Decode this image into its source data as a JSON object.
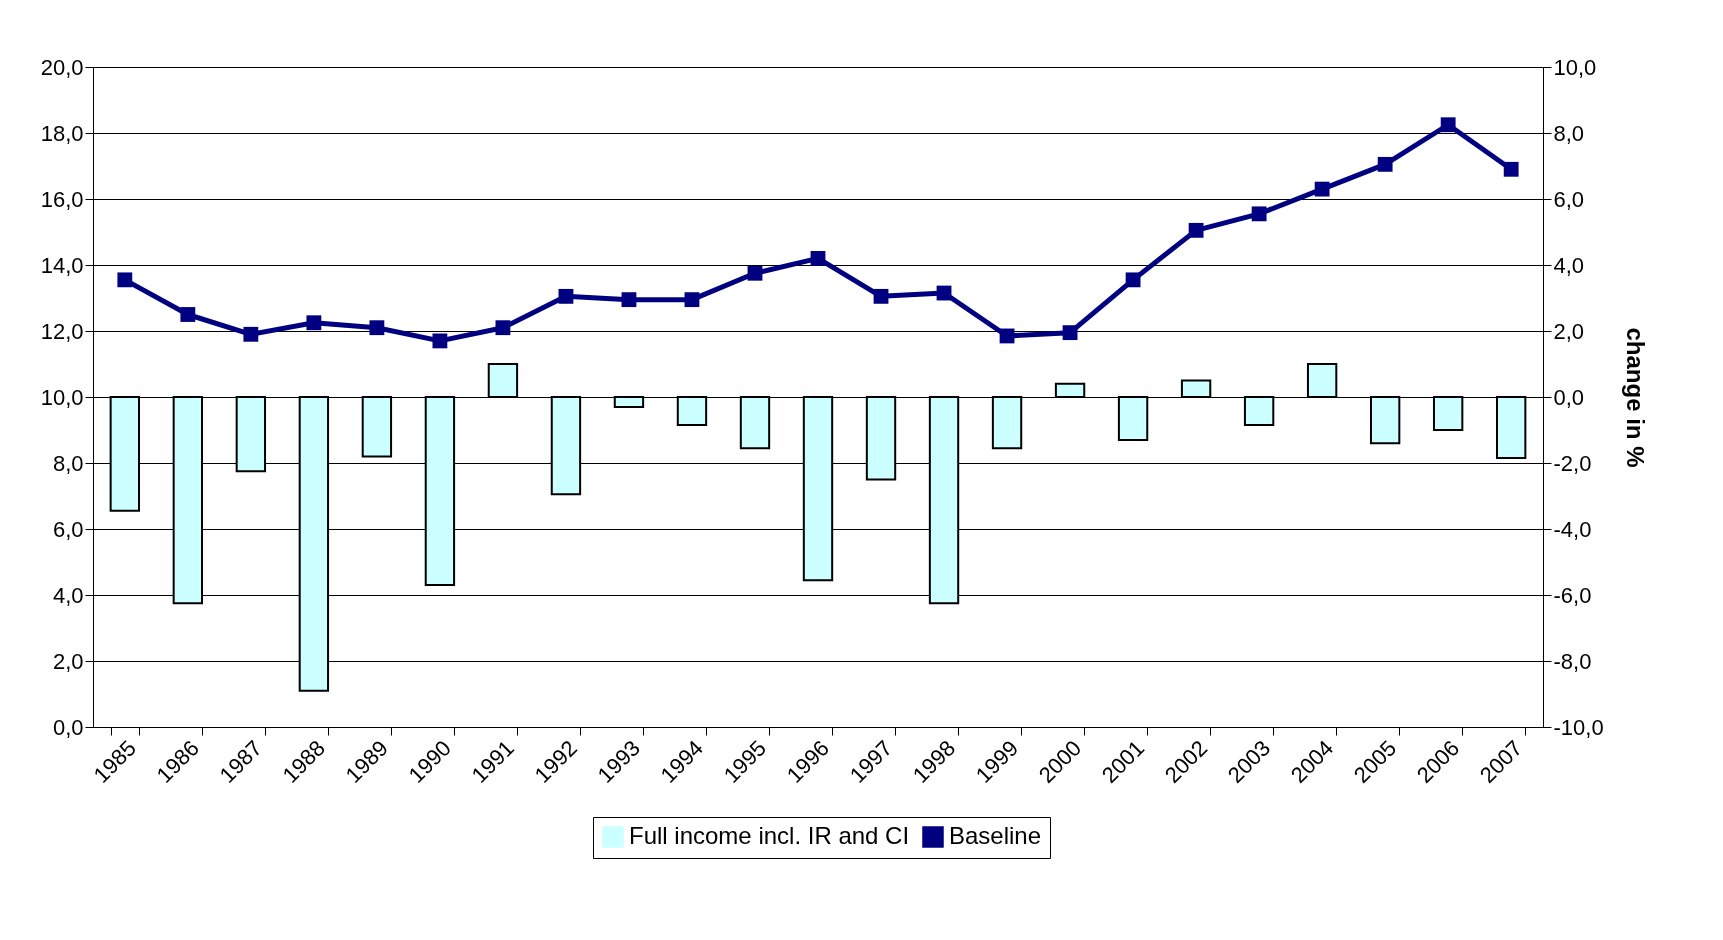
{
  "chart_data": {
    "type": "bar",
    "y2label": "change in %",
    "categories": [
      "1985",
      "1986",
      "1987",
      "1988",
      "1989",
      "1990",
      "1991",
      "1992",
      "1993",
      "1994",
      "1995",
      "1996",
      "1997",
      "1998",
      "1999",
      "2000",
      "2001",
      "2002",
      "2003",
      "2004",
      "2005",
      "2006",
      "2007"
    ],
    "series": [
      {
        "name": "Full income incl. IR and CI",
        "axis": "y2",
        "color": "#ccffff",
        "values": [
          -3.45,
          -6.25,
          -2.25,
          -8.9,
          -1.8,
          -5.7,
          1.0,
          -2.95,
          -0.3,
          -0.85,
          -1.55,
          -5.55,
          -2.5,
          -6.25,
          -1.55,
          0.4,
          -1.3,
          0.5,
          -0.85,
          1.0,
          -1.4,
          -1.0,
          -1.85
        ]
      },
      {
        "name": "Baseline",
        "type": "line",
        "color": "#000080",
        "values": [
          13.55,
          12.5,
          11.9,
          12.25,
          12.1,
          11.7,
          12.1,
          13.05,
          12.95,
          12.95,
          13.75,
          14.2,
          13.05,
          13.15,
          11.85,
          11.95,
          13.55,
          15.05,
          15.55,
          16.3,
          17.05,
          18.25,
          16.9
        ]
      }
    ],
    "ylim": [
      0,
      20
    ],
    "yticks": [
      {
        "value": 0,
        "label": "0,0"
      },
      {
        "value": 2,
        "label": "2,0"
      },
      {
        "value": 4,
        "label": "4,0"
      },
      {
        "value": 6,
        "label": "6,0"
      },
      {
        "value": 8,
        "label": "8,0"
      },
      {
        "value": 10,
        "label": "10,0"
      },
      {
        "value": 12,
        "label": "12,0"
      },
      {
        "value": 14,
        "label": "14,0"
      },
      {
        "value": 16,
        "label": "16,0"
      },
      {
        "value": 18,
        "label": "18,0"
      },
      {
        "value": 20,
        "label": "20,0"
      }
    ],
    "y2lim": [
      -10,
      10
    ],
    "y2ticks": [
      {
        "value": -10,
        "label": "-10,0"
      },
      {
        "value": -8,
        "label": "-8,0"
      },
      {
        "value": -6,
        "label": "-6,0"
      },
      {
        "value": -4,
        "label": "-4,0"
      },
      {
        "value": -2,
        "label": "-2,0"
      },
      {
        "value": 0,
        "label": "0,0"
      },
      {
        "value": 2,
        "label": "2,0"
      },
      {
        "value": 4,
        "label": "4,0"
      },
      {
        "value": 6,
        "label": "6,0"
      },
      {
        "value": 8,
        "label": "8,0"
      },
      {
        "value": 10,
        "label": "10,0"
      }
    ],
    "grid": "y",
    "legend": "bottom",
    "marker": "square",
    "line_style": "solid"
  }
}
